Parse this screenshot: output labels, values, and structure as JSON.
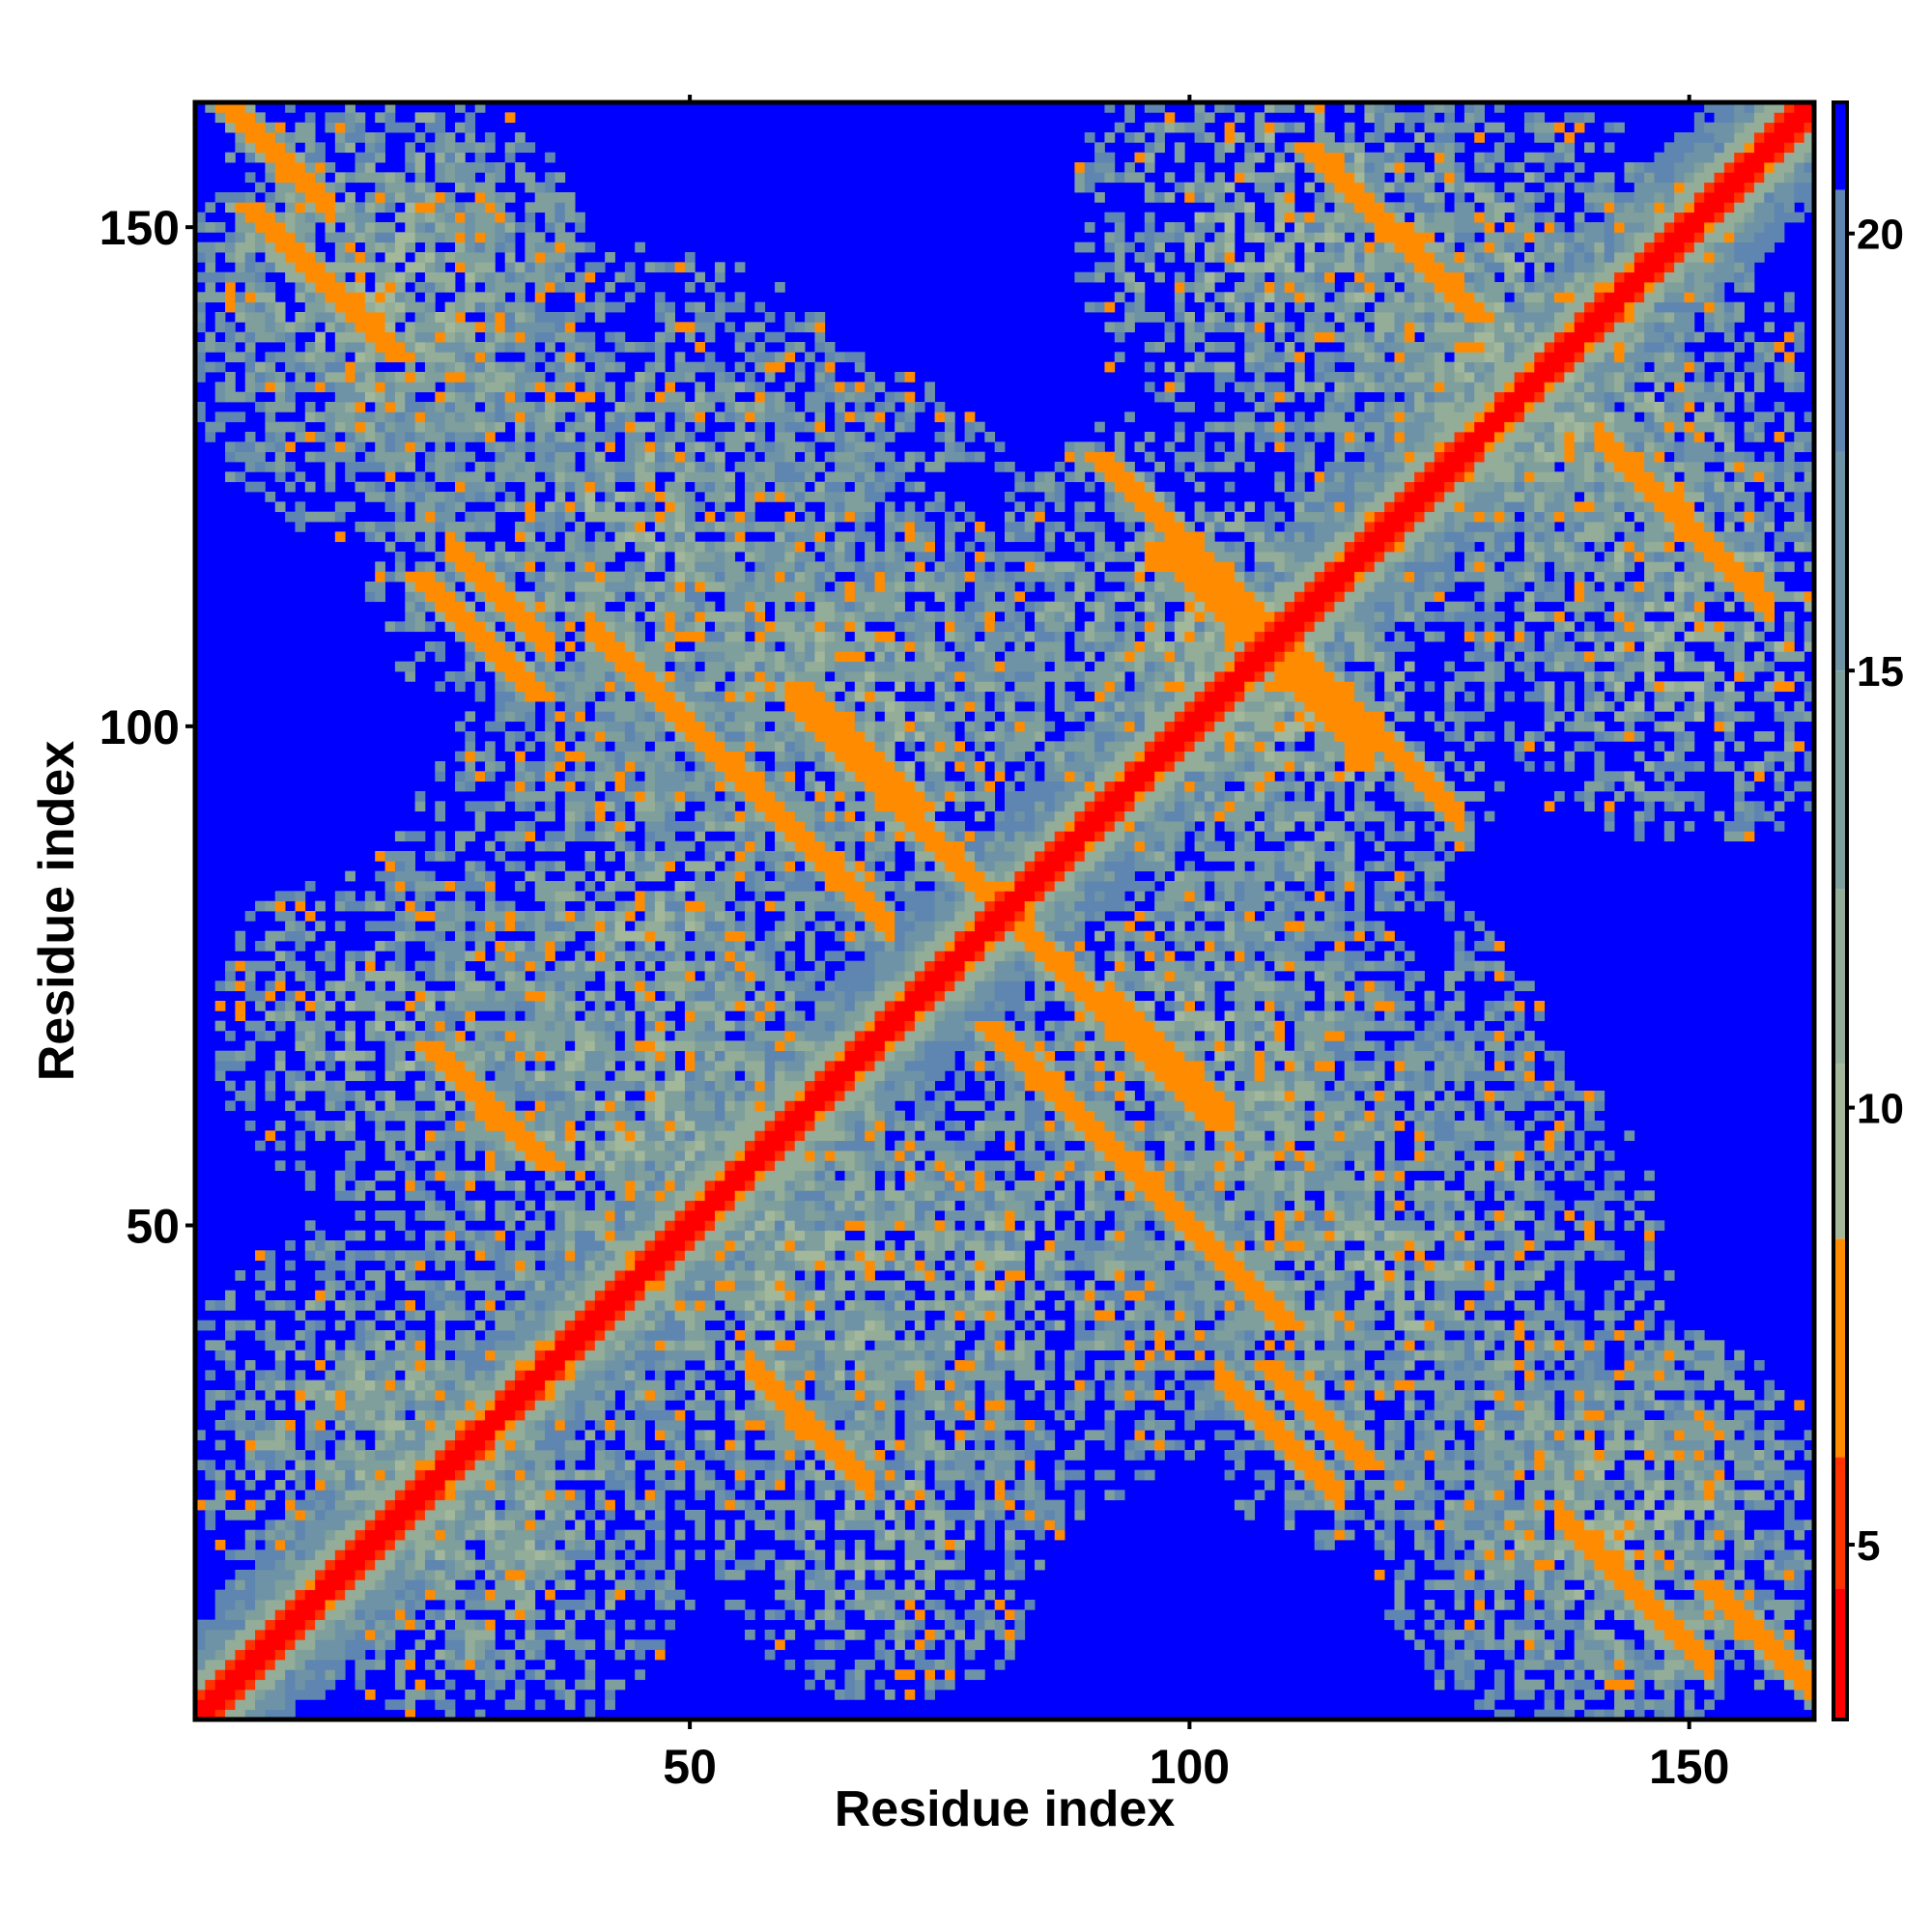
{
  "chart_data": {
    "type": "heatmap",
    "title": "",
    "xlabel": "Residue index",
    "ylabel": "Residue index",
    "xlim": [
      1,
      162
    ],
    "ylim": [
      1,
      162
    ],
    "x_ticks": [
      50,
      100,
      150
    ],
    "y_ticks": [
      50,
      100,
      150
    ],
    "x_tick_labels": [
      "50",
      "100",
      "150"
    ],
    "y_tick_labels": [
      "50",
      "100",
      "150"
    ],
    "grid": false,
    "colorbar": {
      "position": "right",
      "ticks": [
        5,
        10,
        15,
        20
      ],
      "tick_labels": [
        "5",
        "10",
        "15",
        "20"
      ],
      "range": [
        3,
        21.5
      ],
      "colors": [
        {
          "from": 3.0,
          "to": 4.5,
          "color": "#ff0000"
        },
        {
          "from": 4.5,
          "to": 6.0,
          "color": "#ff3300"
        },
        {
          "from": 6.0,
          "to": 8.5,
          "color": "#ff8c00"
        },
        {
          "from": 8.5,
          "to": 10.5,
          "color": "#a3b89a"
        },
        {
          "from": 10.5,
          "to": 12.5,
          "color": "#93ad98"
        },
        {
          "from": 12.5,
          "to": 15.0,
          "color": "#7f9f9c"
        },
        {
          "from": 15.0,
          "to": 17.5,
          "color": "#6f93a6"
        },
        {
          "from": 17.5,
          "to": 20.5,
          "color": "#5e86b0"
        },
        {
          "from": 20.5,
          "to": 21.5,
          "color": "#0000ff"
        }
      ]
    },
    "value_description": "Pairwise residue distance map (symmetric)",
    "background_value": 21.5,
    "diagonal_band": {
      "value": 3.8,
      "halfwidth": 1
    },
    "features": [
      {
        "kind": "parallel",
        "i": [
          14,
          40
        ],
        "offset": 0,
        "value": 5.5,
        "width": 3
      },
      {
        "kind": "antiparallel",
        "i": [
          40,
          70
        ],
        "sum": 150,
        "value": 6.5,
        "width": 2
      },
      {
        "kind": "antiparallel",
        "i": [
          60,
          90
        ],
        "sum": 163,
        "value": 6.0,
        "width": 2
      },
      {
        "kind": "parallel",
        "i": [
          75,
          92
        ],
        "offset": 0,
        "value": 6.5,
        "width": 4
      },
      {
        "kind": "antiparallel",
        "i": [
          103,
          127
        ],
        "sum": 218,
        "value": 6.0,
        "width": 2
      },
      {
        "kind": "antiparallel",
        "i": [
          105,
          118
        ],
        "sum": 215,
        "value": 6.5,
        "width": 2
      },
      {
        "kind": "antiparallel",
        "i": [
          137,
          152
        ],
        "sum": 158,
        "value": 6.0,
        "width": 2
      },
      {
        "kind": "antiparallel",
        "i": [
          1,
          14
        ],
        "sum": 166,
        "value": 6.5,
        "width": 2
      },
      {
        "kind": "antiparallel",
        "i": [
          26,
          36
        ],
        "sum": 144,
        "value": 6.5,
        "width": 2
      },
      {
        "kind": "antiparallel",
        "i": [
          56,
          68
        ],
        "sum": 92,
        "value": 6.5,
        "width": 2
      },
      {
        "kind": "antiparallel",
        "i": [
          141,
          158
        ],
        "sum": 270,
        "value": 6.5,
        "width": 2
      },
      {
        "kind": "antiparallel",
        "i": [
          103,
          115
        ],
        "sum": 138,
        "value": 6.5,
        "width": 2
      },
      {
        "kind": "antiparallel",
        "i": [
          92,
          104
        ],
        "sum": 165,
        "value": 6.5,
        "width": 2
      }
    ],
    "clusters": [
      {
        "center": [
          20,
          140
        ],
        "radius": 22,
        "value": 12.5
      },
      {
        "center": [
          60,
          110
        ],
        "radius": 28,
        "value": 13.5
      },
      {
        "center": [
          45,
          60
        ],
        "radius": 24,
        "value": 12.0
      },
      {
        "center": [
          80,
          45
        ],
        "radius": 26,
        "value": 13.0
      },
      {
        "center": [
          110,
          150
        ],
        "radius": 22,
        "value": 12.0
      },
      {
        "center": [
          140,
          130
        ],
        "radius": 24,
        "value": 12.5
      },
      {
        "center": [
          110,
          100
        ],
        "radius": 22,
        "value": 12.0
      },
      {
        "center": [
          120,
          45
        ],
        "radius": 28,
        "value": 13.0
      },
      {
        "center": [
          145,
          20
        ],
        "radius": 20,
        "value": 12.0
      },
      {
        "center": [
          30,
          20
        ],
        "radius": 22,
        "value": 12.5
      },
      {
        "center": [
          70,
          20
        ],
        "radius": 18,
        "value": 12.5
      },
      {
        "center": [
          100,
          70
        ],
        "radius": 20,
        "value": 12.5
      }
    ],
    "isolated_points": [
      {
        "x": 92,
        "y": 136,
        "value": 6.0
      },
      {
        "x": 136,
        "y": 92,
        "value": 6.0
      }
    ]
  },
  "colors": {
    "frame": "#000000",
    "background_blue": "#0000ff"
  }
}
